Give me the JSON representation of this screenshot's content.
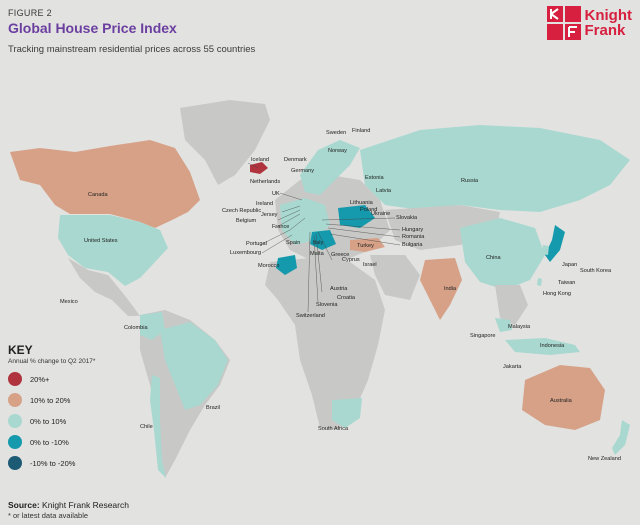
{
  "header": {
    "figure_label": "FIGURE 2",
    "title": "Global House Price Index",
    "subtitle": "Tracking mainstream residential prices across 55 countries"
  },
  "logo": {
    "line1": "Knight",
    "line2": "Frank",
    "color": "#d71f3f"
  },
  "colors": {
    "land": "#c8c8c6",
    "over_20": "#b0343e",
    "10_to_20": "#d6a187",
    "0_to_10": "#a8d8cf",
    "0_to_minus_10": "#1599ac",
    "minus_10_to_minus_20": "#1d5b74"
  },
  "key": {
    "title": "KEY",
    "subtitle": "Annual % change to Q2 2017*",
    "items": [
      {
        "label": "20%+",
        "color": "#b0343e"
      },
      {
        "label": "10% to 20%",
        "color": "#d6a187"
      },
      {
        "label": "0% to 10%",
        "color": "#a8d8cf"
      },
      {
        "label": "0% to -10%",
        "color": "#1599ac"
      },
      {
        "label": "-10% to -20%",
        "color": "#1d5b74"
      }
    ]
  },
  "countries": {
    "iceland": "Iceland",
    "norway": "Norway",
    "sweden": "Sweden",
    "finland": "Finland",
    "denmark": "Denmark",
    "netherlands": "Netherlands",
    "germany": "Germany",
    "estonia": "Estonia",
    "latvia": "Latvia",
    "lithuania": "Lithuania",
    "poland": "Poland",
    "ukraine": "Ukraine",
    "russia": "Russia",
    "canada": "Canada",
    "uk": "UK",
    "czech_republic": "Czech Republic",
    "ireland": "Ireland",
    "jersey": "Jersey",
    "belgium": "Belgium",
    "france": "France",
    "slovakia": "Slovakia",
    "hungary": "Hungary",
    "romania": "Romania",
    "bulgaria": "Bulgaria",
    "turkey": "Turkey",
    "portugal": "Portugal",
    "spain": "Spain",
    "italy": "Italy",
    "luxembourg": "Luxembourg",
    "malta": "Malta",
    "greece": "Greece",
    "cyprus": "Cyprus",
    "israel": "Israel",
    "morocco": "Morocco",
    "austria": "Austria",
    "croatia": "Croatia",
    "slovenia": "Slovenia",
    "switzerland": "Switzerland",
    "united_states": "United States",
    "mexico": "Mexico",
    "colombia": "Colombia",
    "brazil": "Brazil",
    "chile": "Chile",
    "china": "China",
    "india": "India",
    "japan": "Japan",
    "south_korea": "South Korea",
    "taiwan": "Taiwan",
    "hong_kong": "Hong Kong",
    "malaysia": "Malaysia",
    "singapore": "Singapore",
    "indonesia": "Indonesia",
    "jakarta": "Jakarta",
    "australia": "Australia",
    "new_zealand": "New Zealand",
    "south_africa": "South Africa"
  },
  "source": {
    "prefix": "Source:",
    "text": "Knight Frank Research"
  },
  "footnote": "* or latest data available"
}
